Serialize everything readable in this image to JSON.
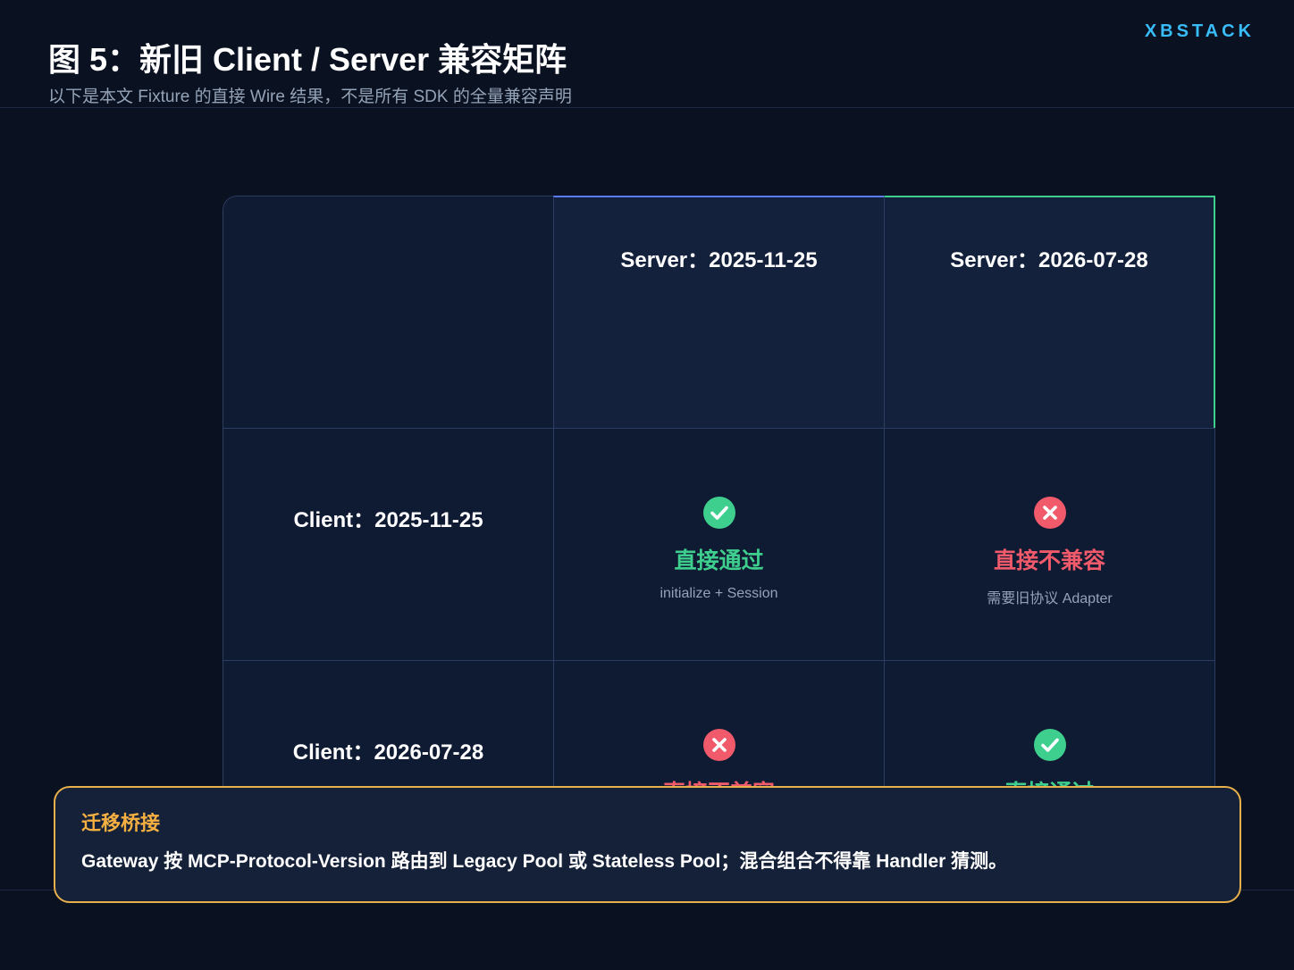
{
  "brand": "XBSTACK",
  "header": {
    "title": "图 5：新旧 Client / Server 兼容矩阵",
    "subtitle": "以下是本文 Fixture 的直接 Wire 结果，不是所有 SDK 的全量兼容声明"
  },
  "matrix": {
    "columns": [
      {
        "label": "Server：2025-11-25"
      },
      {
        "label": "Server：2026-07-28"
      }
    ],
    "rows": [
      {
        "label": "Client：2025-11-25",
        "cells": [
          {
            "status": "ok",
            "icon": "check-circle-icon",
            "label": "直接通过",
            "note": "initialize + Session"
          },
          {
            "status": "bad",
            "icon": "x-circle-icon",
            "label": "直接不兼容",
            "note": "需要旧协议 Adapter"
          }
        ]
      },
      {
        "label": "Client：2026-07-28",
        "cells": [
          {
            "status": "bad",
            "icon": "x-circle-icon",
            "label": "直接不兼容",
            "note": ""
          },
          {
            "status": "ok",
            "icon": "check-circle-icon",
            "label": "直接通过",
            "note": ""
          }
        ]
      }
    ]
  },
  "callout": {
    "title": "迁移桥接",
    "body": "Gateway 按 MCP-Protocol-Version 路由到 Legacy Pool 或 Stateless Pool；混合组合不得靠 Handler 猜测。"
  },
  "colors": {
    "ok": "#3ecf8e",
    "bad": "#f05a6a",
    "accent": "#38bdf8",
    "callout_border": "#e8b04a"
  }
}
